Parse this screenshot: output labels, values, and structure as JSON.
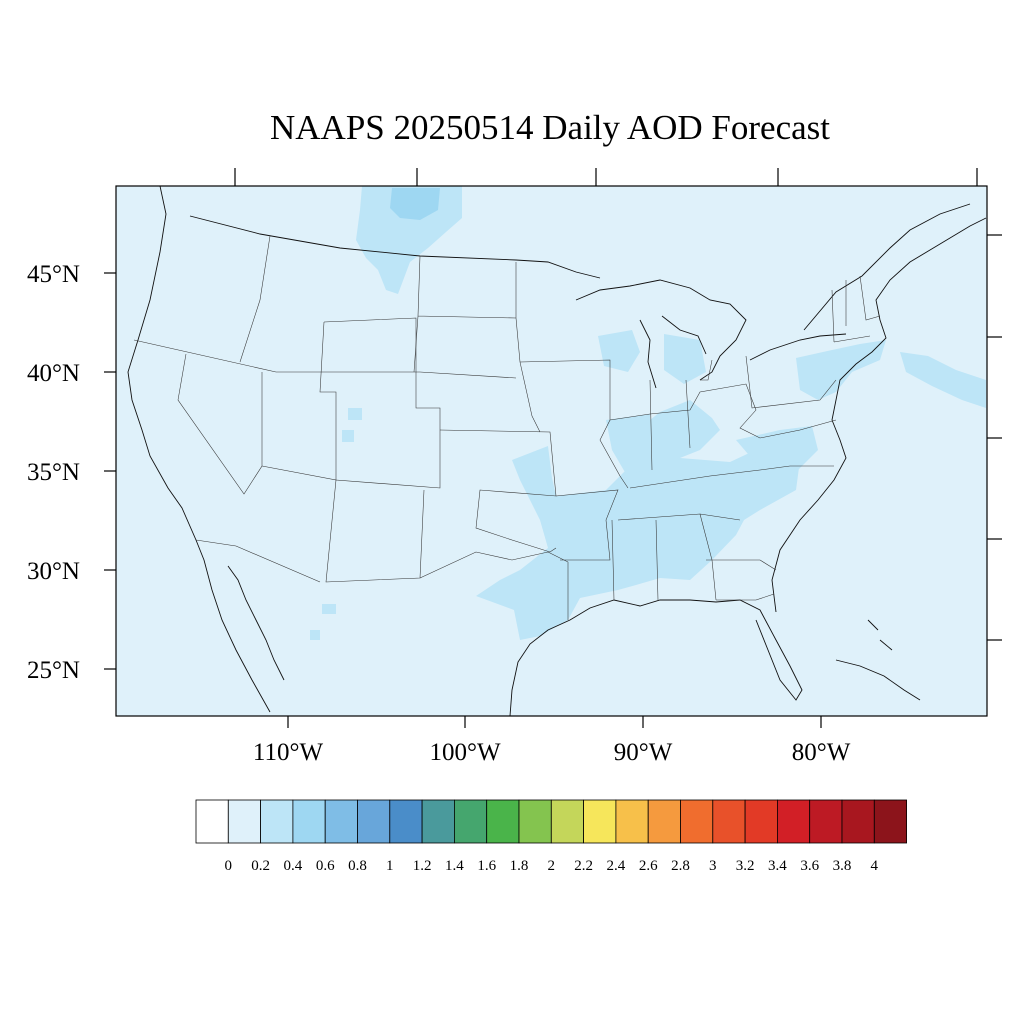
{
  "title": "NAAPS 20250514 Daily AOD Forecast",
  "map": {
    "background_color": "#dff1fa",
    "lat_labels": [
      "45°N",
      "40°N",
      "35°N",
      "30°N",
      "25°N"
    ],
    "lon_labels": [
      "110°W",
      "100°W",
      "90°W",
      "80°W"
    ]
  },
  "aod_regions": [
    {
      "name": "montana-plume",
      "level": "0.4-0.6"
    },
    {
      "name": "montana-plume-edge",
      "level": "0.2-0.4"
    },
    {
      "name": "south-central-us",
      "level": "0.2-0.4"
    },
    {
      "name": "ohio-valley",
      "level": "0.2-0.4"
    },
    {
      "name": "carolinas",
      "level": "0.2-0.4"
    },
    {
      "name": "northeast",
      "level": "0.2-0.4"
    },
    {
      "name": "atlantic-offshore",
      "level": "0.2-0.4"
    }
  ],
  "colorbar": {
    "labels": [
      "0",
      "0.2",
      "0.4",
      "0.6",
      "0.8",
      "1",
      "1.2",
      "1.4",
      "1.6",
      "1.8",
      "2",
      "2.2",
      "2.4",
      "2.6",
      "2.8",
      "3",
      "3.2",
      "3.4",
      "3.6",
      "3.8",
      "4"
    ],
    "colors": [
      "#ffffff",
      "#dff1fa",
      "#bde5f7",
      "#9ed7f2",
      "#7fbde6",
      "#68a6da",
      "#4a8dc9",
      "#4a9a9c",
      "#45a66e",
      "#4ab44a",
      "#84c44f",
      "#c4d65a",
      "#f6e65b",
      "#f7c04a",
      "#f59a3e",
      "#f06d2e",
      "#e8512a",
      "#e23a26",
      "#d21f26",
      "#bd1a24",
      "#a8171f",
      "#8c141b"
    ]
  }
}
